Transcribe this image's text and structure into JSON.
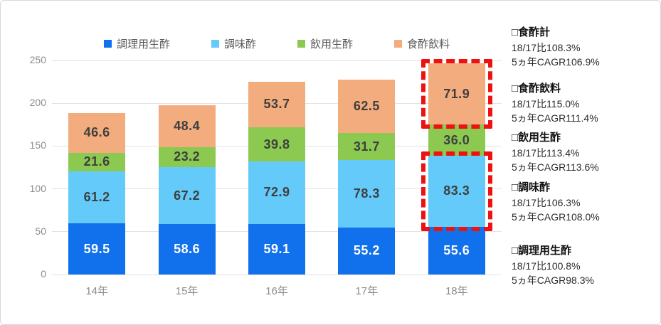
{
  "chart_data": {
    "type": "bar",
    "stacked": true,
    "title": "",
    "xlabel": "",
    "ylabel": "",
    "categories": [
      "14年",
      "15年",
      "16年",
      "17年",
      "18年"
    ],
    "series": [
      {
        "name": "調理用生酢",
        "color": "#1170eb",
        "label_color": "#ffffff",
        "values": [
          59.5,
          58.6,
          59.1,
          55.2,
          55.6
        ]
      },
      {
        "name": "調味酢",
        "color": "#63cafa",
        "label_color": "#3f3f3f",
        "values": [
          61.2,
          67.2,
          72.9,
          78.3,
          83.3
        ]
      },
      {
        "name": "飲用生酢",
        "color": "#8bc950",
        "label_color": "#3f3f3f",
        "values": [
          21.6,
          23.2,
          39.8,
          31.7,
          36.0
        ]
      },
      {
        "name": "食酢飲料",
        "color": "#f2ac7e",
        "label_color": "#3f3f3f",
        "values": [
          46.6,
          48.4,
          53.7,
          62.5,
          71.9
        ]
      }
    ],
    "ylim": [
      0,
      250
    ],
    "yticks": [
      0,
      50,
      100,
      150,
      200,
      250
    ],
    "grid": true,
    "legend_position": "top",
    "highlights": [
      {
        "category": "18年",
        "series": "調味酢",
        "color": "#ee1111"
      },
      {
        "category": "18年",
        "series": "食酢飲料",
        "color": "#ee1111"
      }
    ]
  },
  "annotations": [
    {
      "title": "□食酢計",
      "line1": "18/17比108.3%",
      "line2": "5ヵ年CAGR106.9%"
    },
    {
      "title": "□食酢飲料",
      "line1": "18/17比115.0%",
      "line2": "5ヵ年CAGR111.4%"
    },
    {
      "title": "□飲用生酢",
      "line1": "18/17比113.4%",
      "line2": "5ヵ年CAGR113.6%"
    },
    {
      "title": "□調味酢",
      "line1": "18/17比106.3%",
      "line2": "5ヵ年CAGR108.0%"
    },
    {
      "title": "□調理用生酢",
      "line1": "18/17比100.8%",
      "line2": "5ヵ年CAGR98.3%"
    }
  ]
}
